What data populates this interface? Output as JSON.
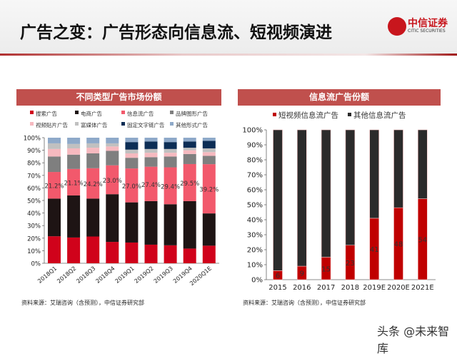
{
  "header": {
    "title": "广告之变：广告形态向信息流、短视频演进"
  },
  "logo": {
    "text_cn": "中信证券",
    "text_en": "CITIC SECURITIES"
  },
  "panels": [
    {
      "title": "不同类型广告市场份额",
      "source": "资料来源：艾瑞咨询（含预测），中信证券研究部"
    },
    {
      "title": "信息流广告份额",
      "source": "资料来源：艾瑞咨询（含预测），中信证券研究部"
    }
  ],
  "watermark": "头条 @未来智库",
  "chart_data": [
    {
      "type": "bar",
      "stacked": true,
      "title": "不同类型广告市场份额",
      "categories": [
        "2018Q1",
        "2018Q2",
        "2018Q3",
        "2018Q4",
        "2019Q1",
        "2019Q2",
        "2019Q3",
        "2019Q4",
        "2020Q1E"
      ],
      "ylim": [
        0,
        100
      ],
      "yticks": [
        "0%",
        "10%",
        "20%",
        "30%",
        "40%",
        "50%",
        "60%",
        "70%",
        "80%",
        "90%",
        "100%"
      ],
      "legend_position": "top",
      "series": [
        {
          "name": "搜索广告",
          "color": "#d0021b",
          "values": [
            21.5,
            20.5,
            21.3,
            17.0,
            16.5,
            14.8,
            14.3,
            11.7,
            14.0
          ]
        },
        {
          "name": "电商广告",
          "color": "#1e1414",
          "values": [
            30.0,
            33.5,
            30.2,
            38.0,
            32.0,
            34.7,
            32.7,
            37.8,
            25.7
          ]
        },
        {
          "name": "信息流广告",
          "color": "#f2596c",
          "values": [
            21.2,
            21.1,
            24.2,
            23.0,
            27.0,
            27.4,
            29.4,
            29.5,
            39.2
          ],
          "labels": [
            "21.2%",
            "21.1%",
            "24.2%",
            "23.0%",
            "27.0%",
            "27.4%",
            "29.4%",
            "29.5%",
            "39.2%"
          ]
        },
        {
          "name": "品牌图形广告",
          "color": "#7f7f7f",
          "values": [
            12.3,
            11.4,
            11.8,
            11.5,
            8.5,
            7.6,
            8.6,
            8.0,
            6.6
          ]
        },
        {
          "name": "视频贴片广告",
          "color": "#f6b9bf",
          "values": [
            6.0,
            5.0,
            4.5,
            3.5,
            3.5,
            3.5,
            3.0,
            3.0,
            3.0
          ]
        },
        {
          "name": "富媒体广告",
          "color": "#c0c0c0",
          "values": [
            4.5,
            3.5,
            3.5,
            2.5,
            3.0,
            3.0,
            3.0,
            2.0,
            3.0
          ]
        },
        {
          "name": "固定文字链广告",
          "color": "#0c2d55",
          "values": [
            0,
            0,
            0,
            0,
            6.0,
            6.0,
            5.5,
            5.0,
            6.0
          ]
        },
        {
          "name": "其他形式广告",
          "color": "#8ea9c9",
          "values": [
            4.5,
            5.0,
            4.5,
            4.5,
            3.5,
            3.0,
            3.5,
            3.0,
            2.5
          ]
        }
      ]
    },
    {
      "type": "bar",
      "stacked": true,
      "title": "信息流广告份额",
      "categories": [
        "2015",
        "2016",
        "2017",
        "2018",
        "2019E",
        "2020E",
        "2021E"
      ],
      "ylim": [
        0,
        100
      ],
      "yticks": [
        "0%",
        "10%",
        "20%",
        "30%",
        "40%",
        "50%",
        "60%",
        "70%",
        "80%",
        "90%",
        "100%"
      ],
      "legend_position": "top",
      "series": [
        {
          "name": "短视频信息流广告",
          "color": "#c00000",
          "values": [
            6,
            9,
            15,
            23,
            41,
            48,
            54
          ],
          "labels": [
            "6",
            "9",
            "15",
            "23",
            "41",
            "48",
            "54"
          ]
        },
        {
          "name": "其他信息流广告",
          "color": "#2b2b2b",
          "values": [
            94,
            91,
            85,
            77,
            59,
            52,
            46
          ]
        }
      ]
    }
  ]
}
